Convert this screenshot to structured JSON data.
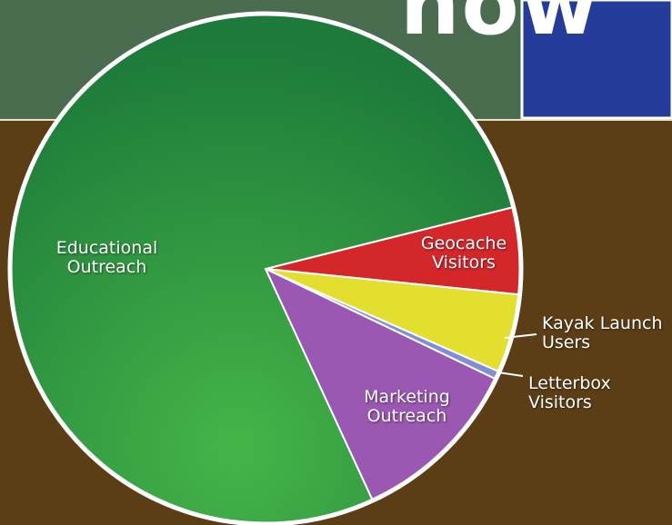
{
  "header": {
    "word": "now"
  },
  "chart_data": {
    "type": "pie",
    "categories": [
      "Geocache Visitors",
      "Kayak Launch Users",
      "Letterbox Visitors",
      "Marketing Outreach",
      "Educational Outreach"
    ],
    "values": [
      5.5,
      5,
      0.5,
      11,
      78
    ],
    "colors": [
      "#d3272a",
      "#e2df2e",
      "#7f8fd6",
      "#9a58b2",
      "#2f9944"
    ],
    "legend": false
  }
}
